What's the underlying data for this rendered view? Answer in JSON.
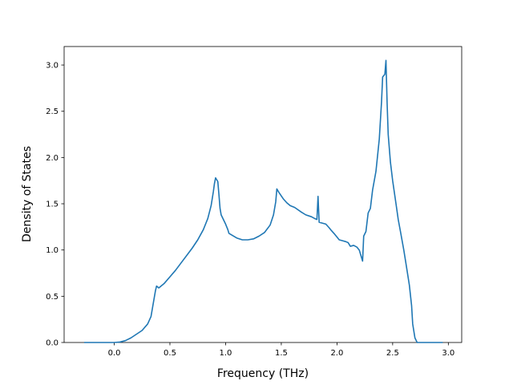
{
  "chart_data": {
    "type": "line",
    "title": "",
    "xlabel": "Frequency (THz)",
    "ylabel": "Density of States",
    "xlim": [
      -0.45,
      3.12
    ],
    "ylim": [
      0.0,
      3.2
    ],
    "xticks": [
      0.0,
      0.5,
      1.0,
      1.5,
      2.0,
      2.5,
      3.0
    ],
    "xtick_labels": [
      "0.0",
      "0.5",
      "1.0",
      "1.5",
      "2.0",
      "2.5",
      "3.0"
    ],
    "yticks": [
      0.0,
      0.5,
      1.0,
      1.5,
      2.0,
      2.5,
      3.0
    ],
    "ytick_labels": [
      "0.0",
      "0.5",
      "1.0",
      "1.5",
      "2.0",
      "2.5",
      "3.0"
    ],
    "grid": false,
    "legend": "none",
    "series": [
      {
        "color": "#1f77b4",
        "points": [
          [
            -0.27,
            0.0
          ],
          [
            -0.1,
            0.0
          ],
          [
            0.0,
            0.0
          ],
          [
            0.05,
            0.005
          ],
          [
            0.1,
            0.02
          ],
          [
            0.15,
            0.05
          ],
          [
            0.2,
            0.09
          ],
          [
            0.25,
            0.13
          ],
          [
            0.3,
            0.2
          ],
          [
            0.33,
            0.28
          ],
          [
            0.35,
            0.42
          ],
          [
            0.37,
            0.56
          ],
          [
            0.38,
            0.61
          ],
          [
            0.4,
            0.59
          ],
          [
            0.45,
            0.64
          ],
          [
            0.5,
            0.71
          ],
          [
            0.55,
            0.78
          ],
          [
            0.6,
            0.86
          ],
          [
            0.65,
            0.94
          ],
          [
            0.7,
            1.02
          ],
          [
            0.75,
            1.11
          ],
          [
            0.8,
            1.22
          ],
          [
            0.84,
            1.34
          ],
          [
            0.87,
            1.48
          ],
          [
            0.89,
            1.63
          ],
          [
            0.9,
            1.72
          ],
          [
            0.91,
            1.78
          ],
          [
            0.93,
            1.74
          ],
          [
            0.94,
            1.6
          ],
          [
            0.95,
            1.45
          ],
          [
            0.96,
            1.38
          ],
          [
            1.0,
            1.28
          ],
          [
            1.02,
            1.22
          ],
          [
            1.03,
            1.18
          ],
          [
            1.1,
            1.13
          ],
          [
            1.15,
            1.11
          ],
          [
            1.2,
            1.11
          ],
          [
            1.25,
            1.12
          ],
          [
            1.3,
            1.15
          ],
          [
            1.35,
            1.19
          ],
          [
            1.4,
            1.27
          ],
          [
            1.43,
            1.38
          ],
          [
            1.45,
            1.52
          ],
          [
            1.46,
            1.66
          ],
          [
            1.48,
            1.62
          ],
          [
            1.52,
            1.55
          ],
          [
            1.55,
            1.51
          ],
          [
            1.58,
            1.48
          ],
          [
            1.62,
            1.46
          ],
          [
            1.68,
            1.41
          ],
          [
            1.72,
            1.38
          ],
          [
            1.77,
            1.36
          ],
          [
            1.8,
            1.34
          ],
          [
            1.82,
            1.33
          ],
          [
            1.83,
            1.58
          ],
          [
            1.84,
            1.3
          ],
          [
            1.87,
            1.29
          ],
          [
            1.9,
            1.28
          ],
          [
            1.93,
            1.24
          ],
          [
            1.95,
            1.21
          ],
          [
            1.98,
            1.17
          ],
          [
            2.0,
            1.14
          ],
          [
            2.02,
            1.11
          ],
          [
            2.05,
            1.1
          ],
          [
            2.08,
            1.09
          ],
          [
            2.1,
            1.08
          ],
          [
            2.12,
            1.04
          ],
          [
            2.15,
            1.05
          ],
          [
            2.18,
            1.03
          ],
          [
            2.2,
            1.0
          ],
          [
            2.22,
            0.92
          ],
          [
            2.23,
            0.88
          ],
          [
            2.24,
            1.15
          ],
          [
            2.26,
            1.2
          ],
          [
            2.28,
            1.4
          ],
          [
            2.3,
            1.45
          ],
          [
            2.32,
            1.65
          ],
          [
            2.35,
            1.85
          ],
          [
            2.38,
            2.2
          ],
          [
            2.4,
            2.6
          ],
          [
            2.41,
            2.87
          ],
          [
            2.43,
            2.9
          ],
          [
            2.44,
            3.05
          ],
          [
            2.45,
            2.6
          ],
          [
            2.46,
            2.25
          ],
          [
            2.48,
            1.95
          ],
          [
            2.5,
            1.75
          ],
          [
            2.53,
            1.5
          ],
          [
            2.55,
            1.33
          ],
          [
            2.57,
            1.2
          ],
          [
            2.6,
            1.0
          ],
          [
            2.62,
            0.85
          ],
          [
            2.65,
            0.62
          ],
          [
            2.67,
            0.4
          ],
          [
            2.68,
            0.2
          ],
          [
            2.7,
            0.05
          ],
          [
            2.72,
            0.0
          ],
          [
            2.8,
            0.0
          ],
          [
            2.95,
            0.0
          ]
        ]
      }
    ]
  }
}
